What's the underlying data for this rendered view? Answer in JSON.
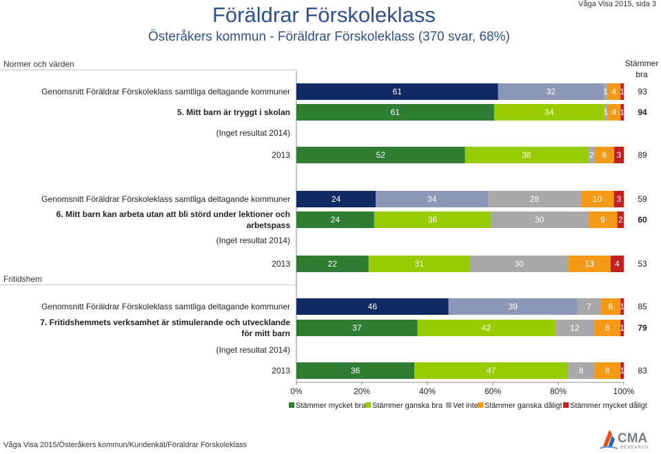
{
  "header": {
    "title": "Föräldrar Förskoleklass",
    "subtitle": "Österåkers kommun - Föräldrar Förskoleklass (370 svar, 68%)",
    "page_ref": "Våga Visa 2015, sida 3"
  },
  "sections": {
    "normer": "Normer och värden",
    "fritids": "Fritidshem"
  },
  "column_header": "Stämmer bra",
  "footer": "Våga Visa 2015/Österåkers kommun/Kundenkät/Föräldrar Förskoleklass",
  "logo": {
    "name": "CMA",
    "sub": "RESEARCH"
  },
  "chart_data": {
    "type": "bar",
    "orientation": "horizontal",
    "stacked": true,
    "percent_axis": [
      0,
      100
    ],
    "ticks": [
      "0%",
      "20%",
      "40%",
      "60%",
      "80%",
      "100%"
    ],
    "series": [
      {
        "name": "Stämmer mycket bra",
        "color_dark": "#112a66",
        "color": "#2e7d32"
      },
      {
        "name": "Stämmer ganska bra",
        "color_dark": "#8c96b5",
        "color": "#99cc00"
      },
      {
        "name": "Vet inte",
        "color_dark": "#a8a8a8",
        "color": "#a8a8a8"
      },
      {
        "name": "Stämmer ganska dåligt",
        "color_dark": "#f59a16",
        "color": "#f59a16"
      },
      {
        "name": "Stämmer mycket dåligt",
        "color_dark": "#c42020",
        "color": "#c42020"
      }
    ],
    "rows": [
      {
        "label": "Genomsnitt Föräldrar Förskoleklass samtliga deltagande kommuner",
        "style": "avg",
        "values": [
          61,
          32,
          1,
          4,
          1
        ],
        "labels": [
          "61",
          "32",
          "1",
          "4",
          "1"
        ],
        "score": "93"
      },
      {
        "label": "5. Mitt barn är tryggt i skolan",
        "style": "current",
        "values": [
          61,
          34,
          1,
          4,
          1
        ],
        "labels": [
          "61",
          "34",
          "1",
          "4",
          "1"
        ],
        "score": "94"
      },
      {
        "label": "(Inget resultat 2014)",
        "style": "none",
        "values": [],
        "labels": [],
        "score": ""
      },
      {
        "label": "2013",
        "style": "prev",
        "values": [
          52,
          38,
          2,
          6,
          3
        ],
        "labels": [
          "52",
          "38",
          "2",
          "6",
          "3"
        ],
        "score": "89"
      },
      {
        "label": "Genomsnitt Föräldrar Förskoleklass samtliga deltagande kommuner",
        "style": "avg",
        "values": [
          24,
          34,
          28,
          10,
          3
        ],
        "labels": [
          "24",
          "34",
          "28",
          "10",
          "3"
        ],
        "score": "59"
      },
      {
        "label": "6. Mitt barn kan arbeta utan att bli störd under lektioner och arbetspass",
        "style": "current",
        "values": [
          24,
          36,
          30,
          9,
          2
        ],
        "labels": [
          "24",
          "36",
          "30",
          "9",
          "2"
        ],
        "score": "60"
      },
      {
        "label": "(Inget resultat 2014)",
        "style": "none",
        "values": [],
        "labels": [],
        "score": ""
      },
      {
        "label": "2013",
        "style": "prev",
        "values": [
          22,
          31,
          30,
          13,
          4
        ],
        "labels": [
          "22",
          "31",
          "30",
          "13",
          "4"
        ],
        "score": "53"
      },
      {
        "label": "Genomsnitt Föräldrar Förskoleklass samtliga deltagande kommuner",
        "style": "avg",
        "values": [
          46,
          39,
          7,
          6,
          1
        ],
        "labels": [
          "46",
          "39",
          "7",
          "6",
          "1"
        ],
        "score": "85"
      },
      {
        "label": "7. Fritidshemmets verksamhet är stimulerande och utvecklande för mitt barn",
        "style": "current",
        "values": [
          37,
          42,
          12,
          8,
          1
        ],
        "labels": [
          "37",
          "42",
          "12",
          "8",
          "1"
        ],
        "score": "79"
      },
      {
        "label": "(Inget resultat 2014)",
        "style": "none",
        "values": [],
        "labels": [],
        "score": ""
      },
      {
        "label": "2013",
        "style": "prev",
        "values": [
          36,
          47,
          8,
          8,
          1
        ],
        "labels": [
          "36",
          "47",
          "8",
          "8",
          "1"
        ],
        "score": "83"
      }
    ]
  }
}
